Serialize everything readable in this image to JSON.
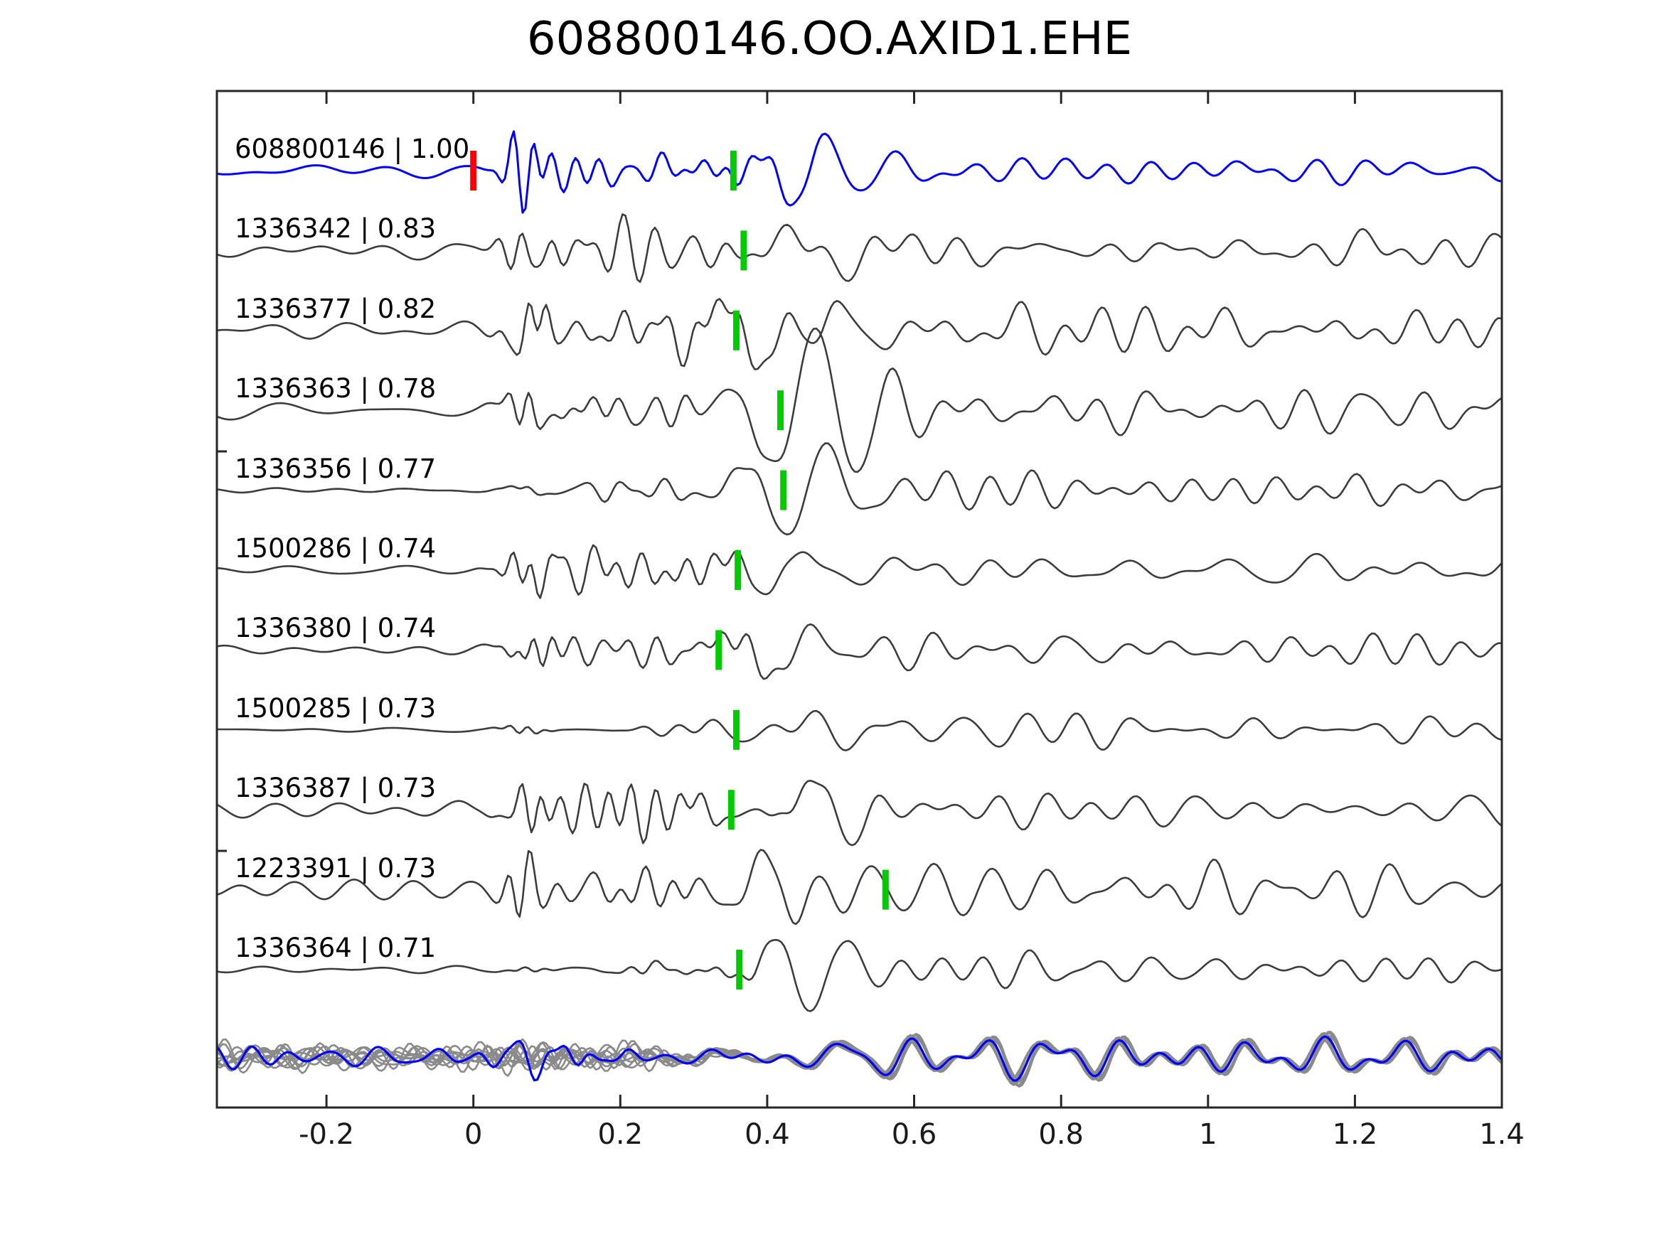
{
  "title": "608800146.OO.AXID1.EHE",
  "chart_data": {
    "type": "line",
    "subtype": "seismic-waveform-stack",
    "title": "608800146.OO.AXID1.EHE",
    "xlabel": "",
    "ylabel": "",
    "xlim": [
      -0.349,
      1.4
    ],
    "x_ticks": [
      "-0.2",
      "0",
      "0.2",
      "0.4",
      "0.6",
      "0.8",
      "1",
      "1.2",
      "1.4"
    ],
    "x_tick_values": [
      -0.2,
      0,
      0.2,
      0.4,
      0.6,
      0.8,
      1,
      1.2,
      1.4
    ],
    "grid": false,
    "legend": "none",
    "colors": {
      "template": "#0000ff",
      "trace": "#3c3c3c",
      "overlay": "#8a8a8a",
      "pick_green": "#00cc00",
      "pick_red": "#ff0000",
      "axis": "#262626",
      "text": "#000000"
    },
    "traces": [
      {
        "id": "608800146",
        "cc": "1.00",
        "label": "608800146 | 1.00",
        "color": "template",
        "picks": [
          {
            "time": 0.0,
            "color": "red"
          },
          {
            "time": 0.354,
            "color": "green"
          }
        ]
      },
      {
        "id": "1336342",
        "cc": "0.83",
        "label": "1336342 | 0.83",
        "color": "trace",
        "picks": [
          {
            "time": 0.368,
            "color": "green"
          }
        ]
      },
      {
        "id": "1336377",
        "cc": "0.82",
        "label": "1336377 | 0.82",
        "color": "trace",
        "picks": [
          {
            "time": 0.358,
            "color": "green"
          }
        ]
      },
      {
        "id": "1336363",
        "cc": "0.78",
        "label": "1336363 | 0.78",
        "color": "trace",
        "picks": [
          {
            "time": 0.418,
            "color": "green"
          }
        ]
      },
      {
        "id": "1336356",
        "cc": "0.77",
        "label": "1336356 | 0.77",
        "color": "trace",
        "picks": [
          {
            "time": 0.422,
            "color": "green"
          }
        ]
      },
      {
        "id": "1500286",
        "cc": "0.74",
        "label": "1500286 | 0.74",
        "color": "trace",
        "picks": [
          {
            "time": 0.36,
            "color": "green"
          }
        ]
      },
      {
        "id": "1336380",
        "cc": "0.74",
        "label": "1336380 | 0.74",
        "color": "trace",
        "picks": [
          {
            "time": 0.334,
            "color": "green"
          }
        ]
      },
      {
        "id": "1500285",
        "cc": "0.73",
        "label": "1500285 | 0.73",
        "color": "trace",
        "picks": [
          {
            "time": 0.358,
            "color": "green"
          }
        ]
      },
      {
        "id": "1336387",
        "cc": "0.73",
        "label": "1336387 | 0.73",
        "color": "trace",
        "picks": [
          {
            "time": 0.351,
            "color": "green"
          }
        ]
      },
      {
        "id": "1223391",
        "cc": "0.73",
        "label": "1223391 | 0.73",
        "color": "trace",
        "picks": [
          {
            "time": 0.561,
            "color": "green"
          }
        ]
      },
      {
        "id": "1336364",
        "cc": "0.71",
        "label": "1336364 | 0.71",
        "color": "trace",
        "picks": [
          {
            "time": 0.362,
            "color": "green"
          }
        ]
      }
    ],
    "overlay": {
      "description": "all detected traces superimposed at bottom with template in blue",
      "color": "overlay"
    }
  }
}
